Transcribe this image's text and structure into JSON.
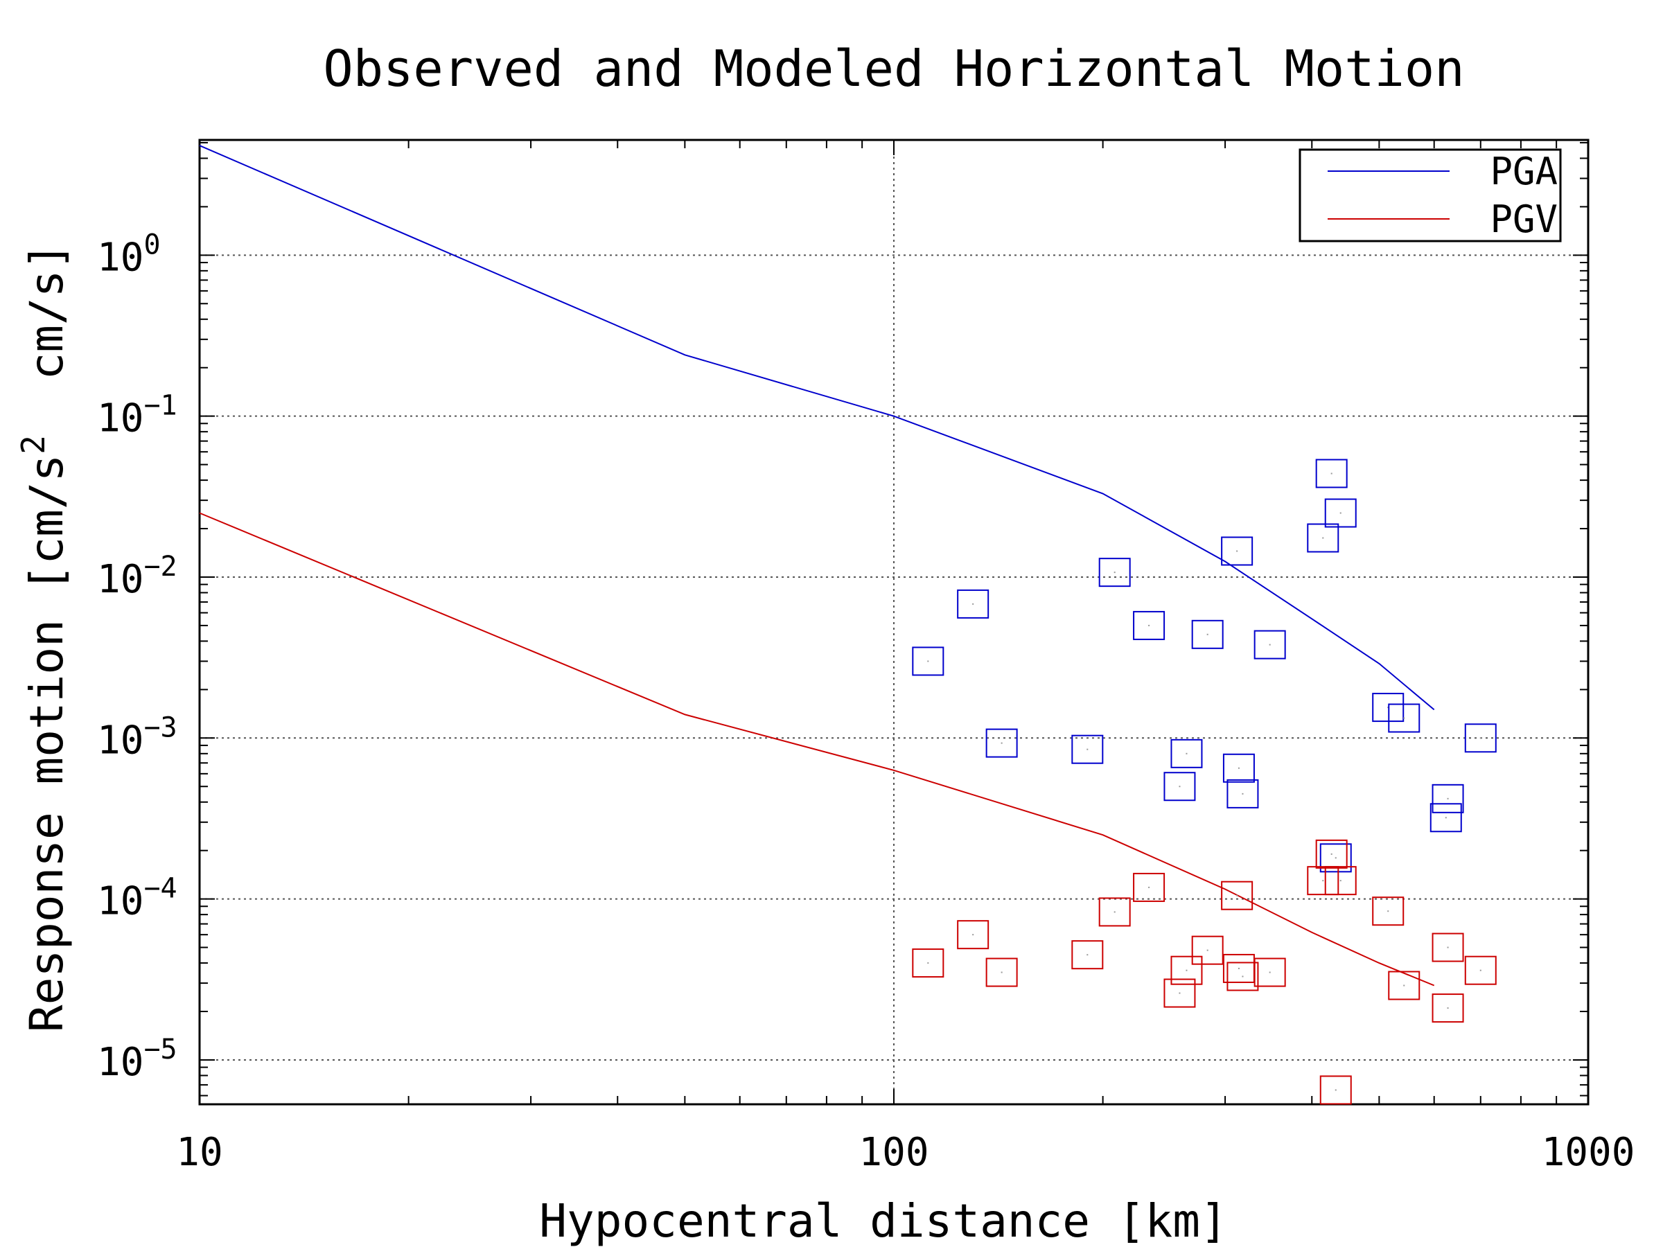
{
  "chart_data": {
    "type": "scatter",
    "title": "Observed and Modeled Horizontal Motion",
    "xlabel": "Hypocentral distance [km]",
    "ylabel": {
      "prefix": "Response motion [cm/s",
      "superscript": "2",
      "suffix": "  cm/s]"
    },
    "x_scale": "log",
    "y_scale": "log",
    "xlim": [
      10,
      1000
    ],
    "ylim": [
      5.3e-06,
      5.2
    ],
    "x_ticks": [
      {
        "value": 10,
        "label": "10"
      },
      {
        "value": 100,
        "label": "100"
      },
      {
        "value": 1000,
        "label": "1000"
      }
    ],
    "y_ticks": [
      {
        "value": 1,
        "base": "10",
        "exp": "0"
      },
      {
        "value": 0.1,
        "base": "10",
        "exp": "−1"
      },
      {
        "value": 0.01,
        "base": "10",
        "exp": "−2"
      },
      {
        "value": 0.001,
        "base": "10",
        "exp": "−3"
      },
      {
        "value": 0.0001,
        "base": "10",
        "exp": "−4"
      },
      {
        "value": 1e-05,
        "base": "10",
        "exp": "−5"
      }
    ],
    "grid": true,
    "legend_position": "top-right",
    "series": [
      {
        "name": "PGA",
        "color": "#0000cc",
        "line": [
          [
            10,
            4.8
          ],
          [
            50,
            0.24
          ],
          [
            100,
            0.1
          ],
          [
            200,
            0.033
          ],
          [
            300,
            0.0125
          ],
          [
            400,
            0.0055
          ],
          [
            500,
            0.0029
          ],
          [
            600,
            0.0015
          ]
        ],
        "points": [
          [
            112,
            0.003
          ],
          [
            130,
            0.0068
          ],
          [
            143,
            0.00093
          ],
          [
            190,
            0.00085
          ],
          [
            208,
            0.0107
          ],
          [
            233,
            0.005
          ],
          [
            258,
            0.0005
          ],
          [
            264,
            0.0008
          ],
          [
            283,
            0.0044
          ],
          [
            312,
            0.0145
          ],
          [
            314,
            0.00065
          ],
          [
            318,
            0.00045
          ],
          [
            348,
            0.0038
          ],
          [
            415,
            0.0175
          ],
          [
            427,
            0.044
          ],
          [
            440,
            0.025
          ],
          [
            433,
            0.00018
          ],
          [
            515,
            0.00155
          ],
          [
            543,
            0.00133
          ],
          [
            628,
            0.00042
          ],
          [
            624,
            0.00032
          ],
          [
            700,
            0.001
          ]
        ]
      },
      {
        "name": "PGV",
        "color": "#cc0000",
        "line": [
          [
            10,
            0.025
          ],
          [
            50,
            0.0014
          ],
          [
            100,
            0.00063
          ],
          [
            200,
            0.00025
          ],
          [
            300,
            0.000115
          ],
          [
            400,
            6.2e-05
          ],
          [
            500,
            4e-05
          ],
          [
            600,
            2.9e-05
          ]
        ],
        "points": [
          [
            112,
            4e-05
          ],
          [
            130,
            6e-05
          ],
          [
            143,
            3.5e-05
          ],
          [
            190,
            4.5e-05
          ],
          [
            208,
            8.3e-05
          ],
          [
            233,
            0.000118
          ],
          [
            258,
            2.6e-05
          ],
          [
            264,
            3.6e-05
          ],
          [
            283,
            4.8e-05
          ],
          [
            312,
            0.000105
          ],
          [
            314,
            3.7e-05
          ],
          [
            318,
            3.3e-05
          ],
          [
            348,
            3.5e-05
          ],
          [
            415,
            0.00013
          ],
          [
            427,
            0.00019
          ],
          [
            440,
            0.00013
          ],
          [
            433,
            6.5e-06
          ],
          [
            515,
            8.4e-05
          ],
          [
            543,
            2.9e-05
          ],
          [
            628,
            5e-05
          ],
          [
            628,
            2.1e-05
          ],
          [
            700,
            3.6e-05
          ]
        ]
      }
    ]
  }
}
